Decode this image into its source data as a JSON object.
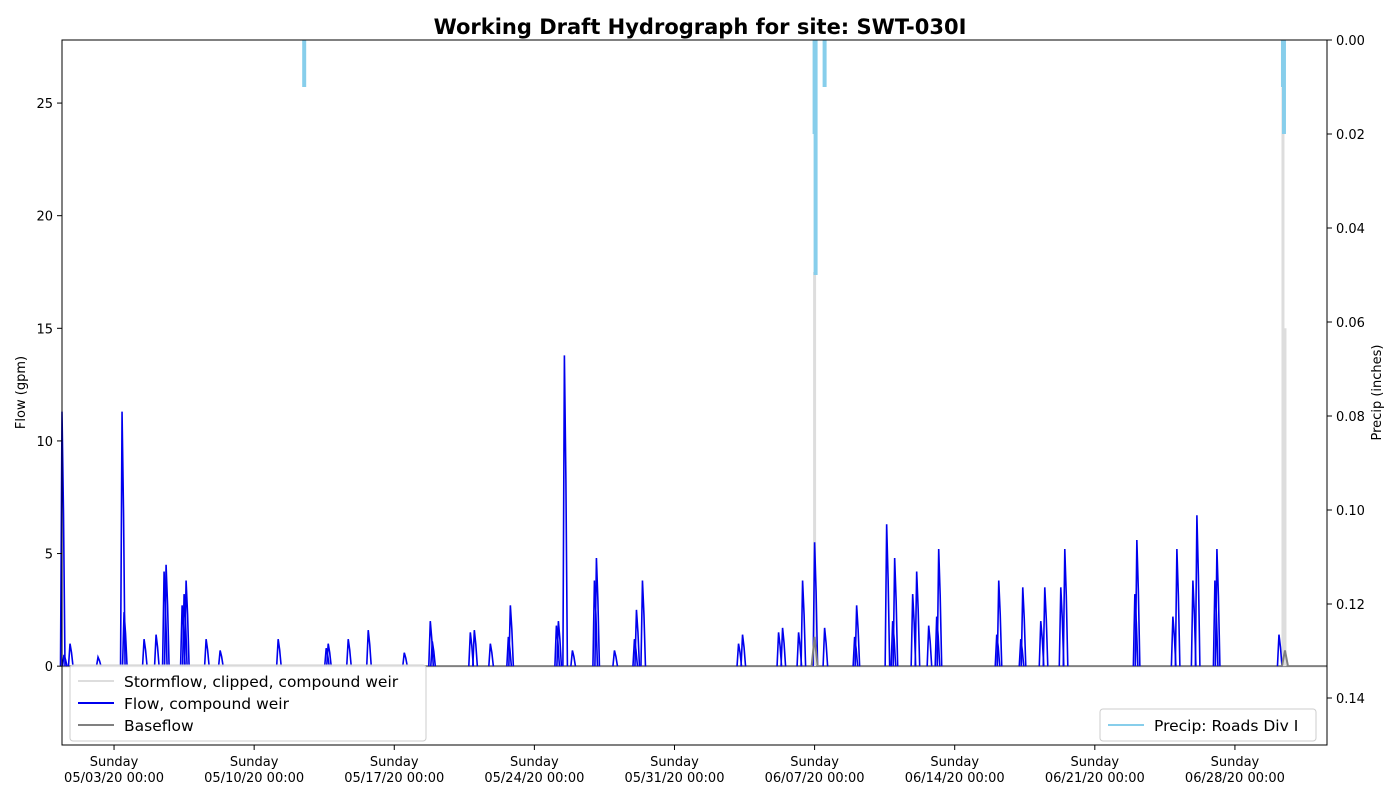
{
  "chart_data": {
    "type": "line",
    "title": "Working Draft Hydrograph for site: SWT-030I",
    "ylabel_left": "Flow (gpm)",
    "ylabel_right": "Precip (inches)",
    "xlabel": "",
    "x_domain_days": [
      -2.6,
      60.6
    ],
    "x_axis_origin": "05/03/20 00:00",
    "y_left_range": [
      -3.5,
      27.8
    ],
    "y_right_range": [
      0.15,
      0.0
    ],
    "y_right_inverted": true,
    "x_ticks": [
      {
        "day": 0,
        "line1": "Sunday",
        "line2": "05/03/20 00:00"
      },
      {
        "day": 7,
        "line1": "Sunday",
        "line2": "05/10/20 00:00"
      },
      {
        "day": 14,
        "line1": "Sunday",
        "line2": "05/17/20 00:00"
      },
      {
        "day": 21,
        "line1": "Sunday",
        "line2": "05/24/20 00:00"
      },
      {
        "day": 28,
        "line1": "Sunday",
        "line2": "05/31/20 00:00"
      },
      {
        "day": 35,
        "line1": "Sunday",
        "line2": "06/07/20 00:00"
      },
      {
        "day": 42,
        "line1": "Sunday",
        "line2": "06/14/20 00:00"
      },
      {
        "day": 49,
        "line1": "Sunday",
        "line2": "06/21/20 00:00"
      },
      {
        "day": 56,
        "line1": "Sunday",
        "line2": "06/28/20 00:00"
      }
    ],
    "y_left_ticks": [
      0,
      5,
      10,
      15,
      20,
      25
    ],
    "y_right_ticks": [
      0.0,
      0.02,
      0.04,
      0.06,
      0.08,
      0.1,
      0.12,
      0.14
    ],
    "grid": false,
    "series": [
      {
        "name": "Stormflow, clipped, compound weir",
        "color": "#dddddd",
        "axis": "left",
        "events": [
          {
            "day": 35.0,
            "value": 17.5
          },
          {
            "day": 58.4,
            "value": 25.7
          },
          {
            "day": 58.5,
            "value": 15.0
          }
        ]
      },
      {
        "name": "Flow, compound weir",
        "color": "#0000ee",
        "axis": "left",
        "events": [
          {
            "day": -2.6,
            "value": 11.3
          },
          {
            "day": -2.5,
            "value": 0.5
          },
          {
            "day": -2.2,
            "value": 1.0
          },
          {
            "day": -0.8,
            "value": 0.4
          },
          {
            "day": 0.4,
            "value": 11.3
          },
          {
            "day": 0.5,
            "value": 2.4
          },
          {
            "day": 1.5,
            "value": 1.2
          },
          {
            "day": 2.1,
            "value": 1.4
          },
          {
            "day": 2.5,
            "value": 4.2
          },
          {
            "day": 2.6,
            "value": 4.5
          },
          {
            "day": 3.4,
            "value": 2.7
          },
          {
            "day": 3.5,
            "value": 3.2
          },
          {
            "day": 3.6,
            "value": 3.8
          },
          {
            "day": 4.6,
            "value": 1.2
          },
          {
            "day": 5.3,
            "value": 0.7
          },
          {
            "day": 8.2,
            "value": 1.2
          },
          {
            "day": 10.6,
            "value": 0.8
          },
          {
            "day": 10.7,
            "value": 1.0
          },
          {
            "day": 11.7,
            "value": 1.2
          },
          {
            "day": 12.7,
            "value": 1.6
          },
          {
            "day": 14.5,
            "value": 0.6
          },
          {
            "day": 15.8,
            "value": 2.0
          },
          {
            "day": 15.9,
            "value": 1.1
          },
          {
            "day": 17.8,
            "value": 1.5
          },
          {
            "day": 18.0,
            "value": 1.6
          },
          {
            "day": 18.8,
            "value": 1.0
          },
          {
            "day": 19.7,
            "value": 1.3
          },
          {
            "day": 19.8,
            "value": 2.7
          },
          {
            "day": 22.1,
            "value": 1.8
          },
          {
            "day": 22.2,
            "value": 2.0
          },
          {
            "day": 22.5,
            "value": 13.8
          },
          {
            "day": 22.9,
            "value": 0.7
          },
          {
            "day": 24.0,
            "value": 3.8
          },
          {
            "day": 24.1,
            "value": 4.8
          },
          {
            "day": 25.0,
            "value": 0.7
          },
          {
            "day": 26.0,
            "value": 1.2
          },
          {
            "day": 26.1,
            "value": 2.5
          },
          {
            "day": 26.4,
            "value": 3.8
          },
          {
            "day": 31.2,
            "value": 1.0
          },
          {
            "day": 31.4,
            "value": 1.4
          },
          {
            "day": 33.2,
            "value": 1.5
          },
          {
            "day": 33.4,
            "value": 1.7
          },
          {
            "day": 34.2,
            "value": 1.5
          },
          {
            "day": 34.4,
            "value": 3.8
          },
          {
            "day": 35.0,
            "value": 5.5
          },
          {
            "day": 35.5,
            "value": 1.7
          },
          {
            "day": 37.0,
            "value": 1.3
          },
          {
            "day": 37.1,
            "value": 2.7
          },
          {
            "day": 38.6,
            "value": 6.3
          },
          {
            "day": 38.9,
            "value": 2.0
          },
          {
            "day": 39.0,
            "value": 4.8
          },
          {
            "day": 39.9,
            "value": 3.2
          },
          {
            "day": 40.1,
            "value": 4.2
          },
          {
            "day": 40.7,
            "value": 1.8
          },
          {
            "day": 41.1,
            "value": 2.2
          },
          {
            "day": 41.2,
            "value": 5.2
          },
          {
            "day": 44.1,
            "value": 1.4
          },
          {
            "day": 44.2,
            "value": 3.8
          },
          {
            "day": 45.3,
            "value": 1.2
          },
          {
            "day": 45.4,
            "value": 3.5
          },
          {
            "day": 46.3,
            "value": 2.0
          },
          {
            "day": 46.5,
            "value": 3.5
          },
          {
            "day": 47.3,
            "value": 3.5
          },
          {
            "day": 47.5,
            "value": 5.2
          },
          {
            "day": 51.0,
            "value": 3.2
          },
          {
            "day": 51.1,
            "value": 5.6
          },
          {
            "day": 52.9,
            "value": 2.2
          },
          {
            "day": 53.1,
            "value": 5.2
          },
          {
            "day": 53.9,
            "value": 3.8
          },
          {
            "day": 54.1,
            "value": 6.7
          },
          {
            "day": 55.0,
            "value": 3.8
          },
          {
            "day": 55.1,
            "value": 5.2
          },
          {
            "day": 58.2,
            "value": 1.4
          }
        ]
      },
      {
        "name": "Baseflow",
        "color": "#808080",
        "axis": "left",
        "events": [
          {
            "day": 35.0,
            "value": 1.3
          },
          {
            "day": 58.5,
            "value": 0.7
          }
        ]
      },
      {
        "name": "Precip: Roads Div I",
        "color": "#87ceeb",
        "axis": "right",
        "events": [
          {
            "day": 9.5,
            "value": 0.01
          },
          {
            "day": 35.0,
            "value": 0.02
          },
          {
            "day": 35.05,
            "value": 0.05
          },
          {
            "day": 35.5,
            "value": 0.01
          },
          {
            "day": 58.4,
            "value": 0.01
          },
          {
            "day": 58.45,
            "value": 0.02
          }
        ]
      }
    ],
    "legends": [
      {
        "placement": "lower-left",
        "entries": [
          "Stormflow, clipped, compound weir",
          "Flow, compound weir",
          "Baseflow"
        ]
      },
      {
        "placement": "lower-right",
        "entries": [
          "Precip: Roads Div I"
        ]
      }
    ]
  }
}
